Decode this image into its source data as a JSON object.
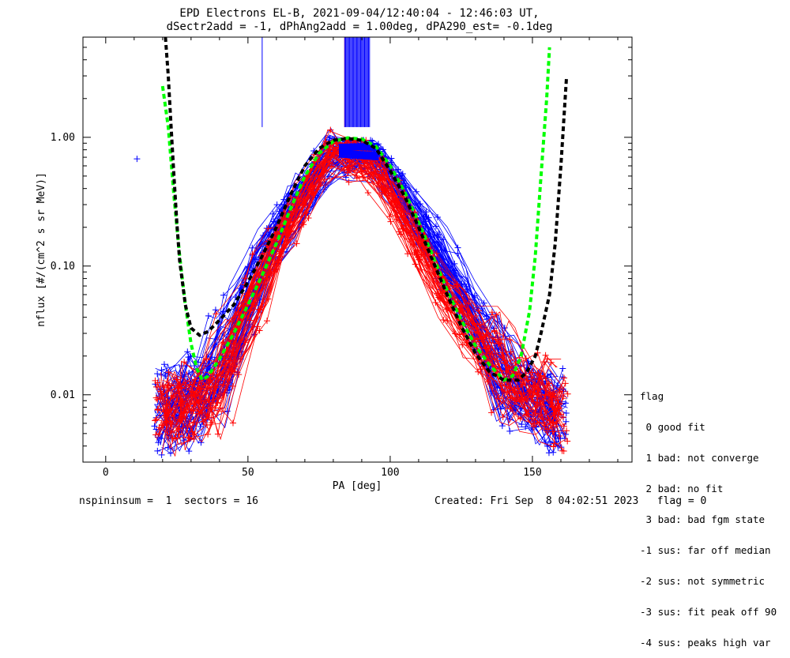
{
  "chart_data": {
    "type": "scatter",
    "title": "EPD Electrons EL-B, 2021-09-04/12:40:04 - 12:46:03 UT,",
    "subtitle": "dSectr2add = -1, dPhAng2add = 1.00deg, dPA290_est=  -0.1deg",
    "xlabel": "PA [deg]",
    "ylabel": "nflux [#/(cm^2 s sr MeV)]",
    "xlim": [
      -8,
      185
    ],
    "ylim": [
      0.003,
      6.0
    ],
    "yscale": "log",
    "xticks": [
      0,
      50,
      100,
      150
    ],
    "xtick_labels": [
      "0",
      "50",
      "100",
      "150"
    ],
    "yticks": [
      0.01,
      0.1,
      1.0
    ],
    "ytick_labels": [
      "0.01",
      "0.10",
      "1.00"
    ],
    "grid": false,
    "colors": {
      "blue": "#0000ff",
      "red": "#ff0000",
      "green": "#00ff00",
      "black": "#000000"
    },
    "series": [
      {
        "color": "#0000ff",
        "style": "line+cross",
        "description_note": "blue sweeps",
        "profile": {
          "x": [
            20,
            38,
            58,
            80,
            95,
            118,
            142,
            160
          ],
          "y": [
            0.007,
            0.012,
            0.15,
            0.82,
            0.75,
            0.12,
            0.012,
            0.007
          ]
        }
      },
      {
        "color": "#ff0000",
        "style": "line+cross",
        "profile": {
          "x": [
            20,
            38,
            58,
            80,
            95,
            118,
            142,
            160
          ],
          "y": [
            0.008,
            0.01,
            0.12,
            0.9,
            0.65,
            0.07,
            0.014,
            0.008
          ]
        }
      },
      {
        "color": "#00ff00",
        "style": "dashed-fit",
        "x": [
          20,
          22,
          24,
          26,
          28,
          30,
          32,
          34,
          36,
          40,
          45,
          50,
          55,
          60,
          65,
          70,
          75,
          80,
          85,
          90,
          95,
          100,
          105,
          110,
          115,
          120,
          125,
          130,
          135,
          140,
          143,
          146,
          149,
          151,
          153,
          155,
          156
        ],
        "y": [
          2.5,
          1.2,
          0.35,
          0.12,
          0.05,
          0.025,
          0.016,
          0.013,
          0.014,
          0.019,
          0.03,
          0.05,
          0.085,
          0.15,
          0.28,
          0.5,
          0.75,
          0.93,
          0.99,
          0.97,
          0.85,
          0.6,
          0.38,
          0.22,
          0.12,
          0.065,
          0.038,
          0.024,
          0.017,
          0.013,
          0.014,
          0.02,
          0.045,
          0.12,
          0.5,
          2.0,
          5.0
        ]
      },
      {
        "color": "#000000",
        "style": "dashed-fit",
        "x": [
          21,
          22,
          23,
          24,
          25,
          26,
          28,
          30,
          33,
          36,
          40,
          45,
          50,
          55,
          60,
          65,
          70,
          75,
          80,
          85,
          90,
          95,
          100,
          105,
          110,
          115,
          120,
          125,
          130,
          135,
          140,
          145,
          148,
          151,
          153,
          156,
          158,
          160,
          162
        ],
        "y": [
          6.0,
          3.0,
          1.2,
          0.5,
          0.22,
          0.11,
          0.05,
          0.033,
          0.029,
          0.031,
          0.038,
          0.05,
          0.075,
          0.12,
          0.2,
          0.36,
          0.6,
          0.82,
          0.95,
          0.98,
          0.95,
          0.82,
          0.55,
          0.35,
          0.2,
          0.11,
          0.06,
          0.034,
          0.021,
          0.015,
          0.013,
          0.013,
          0.015,
          0.02,
          0.03,
          0.06,
          0.15,
          0.6,
          3.0
        ]
      }
    ],
    "vertical_markers": [
      {
        "color": "#0000ff",
        "x": 55,
        "y_from": 1.2
      },
      {
        "color": "#ff0000",
        "x": 84,
        "y_from": 1.2
      },
      {
        "color": "#0000ff",
        "x_range": [
          84,
          93
        ],
        "y_from": 1.2
      }
    ],
    "outliers": [
      {
        "color": "#0000ff",
        "x": 11,
        "y": 0.68
      }
    ]
  },
  "legend": {
    "title": "flag",
    "items": [
      " 0 good fit",
      " 1 bad: not converge",
      " 2 bad: no fit",
      " 3 bad: bad fgm state",
      "-1 sus: far off median",
      "-2 sus: not symmetric",
      "-3 sus: fit peak off 90",
      "-4 sus: peaks high var"
    ]
  },
  "footer": {
    "left": "nspininsum =  1  sectors = 16",
    "right": "Created: Fri Sep  8 04:02:51 2023   flag = 0"
  }
}
